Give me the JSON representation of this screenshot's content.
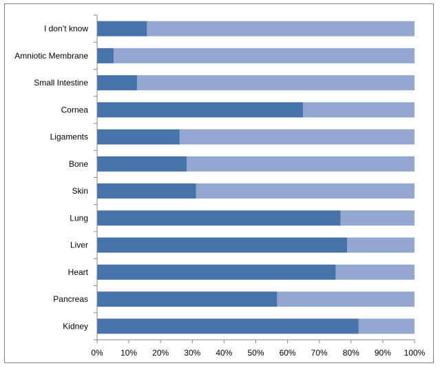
{
  "chart_data": {
    "type": "bar",
    "orientation": "horizontal",
    "stacked": "100%",
    "categories": [
      "I don’t know",
      "Amniotic Membrane",
      "Small Intestine",
      "Cornea",
      "Ligaments",
      "Bone",
      "Skin",
      "Lung",
      "Liver",
      "Heart",
      "Pancreas",
      "Kidney"
    ],
    "series": [
      {
        "values": [
          15.7,
          5.2,
          12.6,
          64.9,
          26.0,
          28.2,
          31.2,
          76.7,
          78.8,
          75.2,
          56.7,
          82.4
        ]
      },
      {
        "values": [
          84.3,
          94.8,
          87.4,
          35.1,
          74.0,
          71.8,
          68.8,
          23.3,
          21.2,
          24.8,
          43.3,
          17.6
        ]
      }
    ],
    "colors": [
      "#4673a8",
      "#93a8d1"
    ],
    "xlim": [
      0,
      100
    ],
    "x_ticks": [
      "0%",
      "10%",
      "20%",
      "30%",
      "40%",
      "50%",
      "60%",
      "70%",
      "80%",
      "90%",
      "100%"
    ],
    "gridlines": false,
    "legend": "none"
  }
}
